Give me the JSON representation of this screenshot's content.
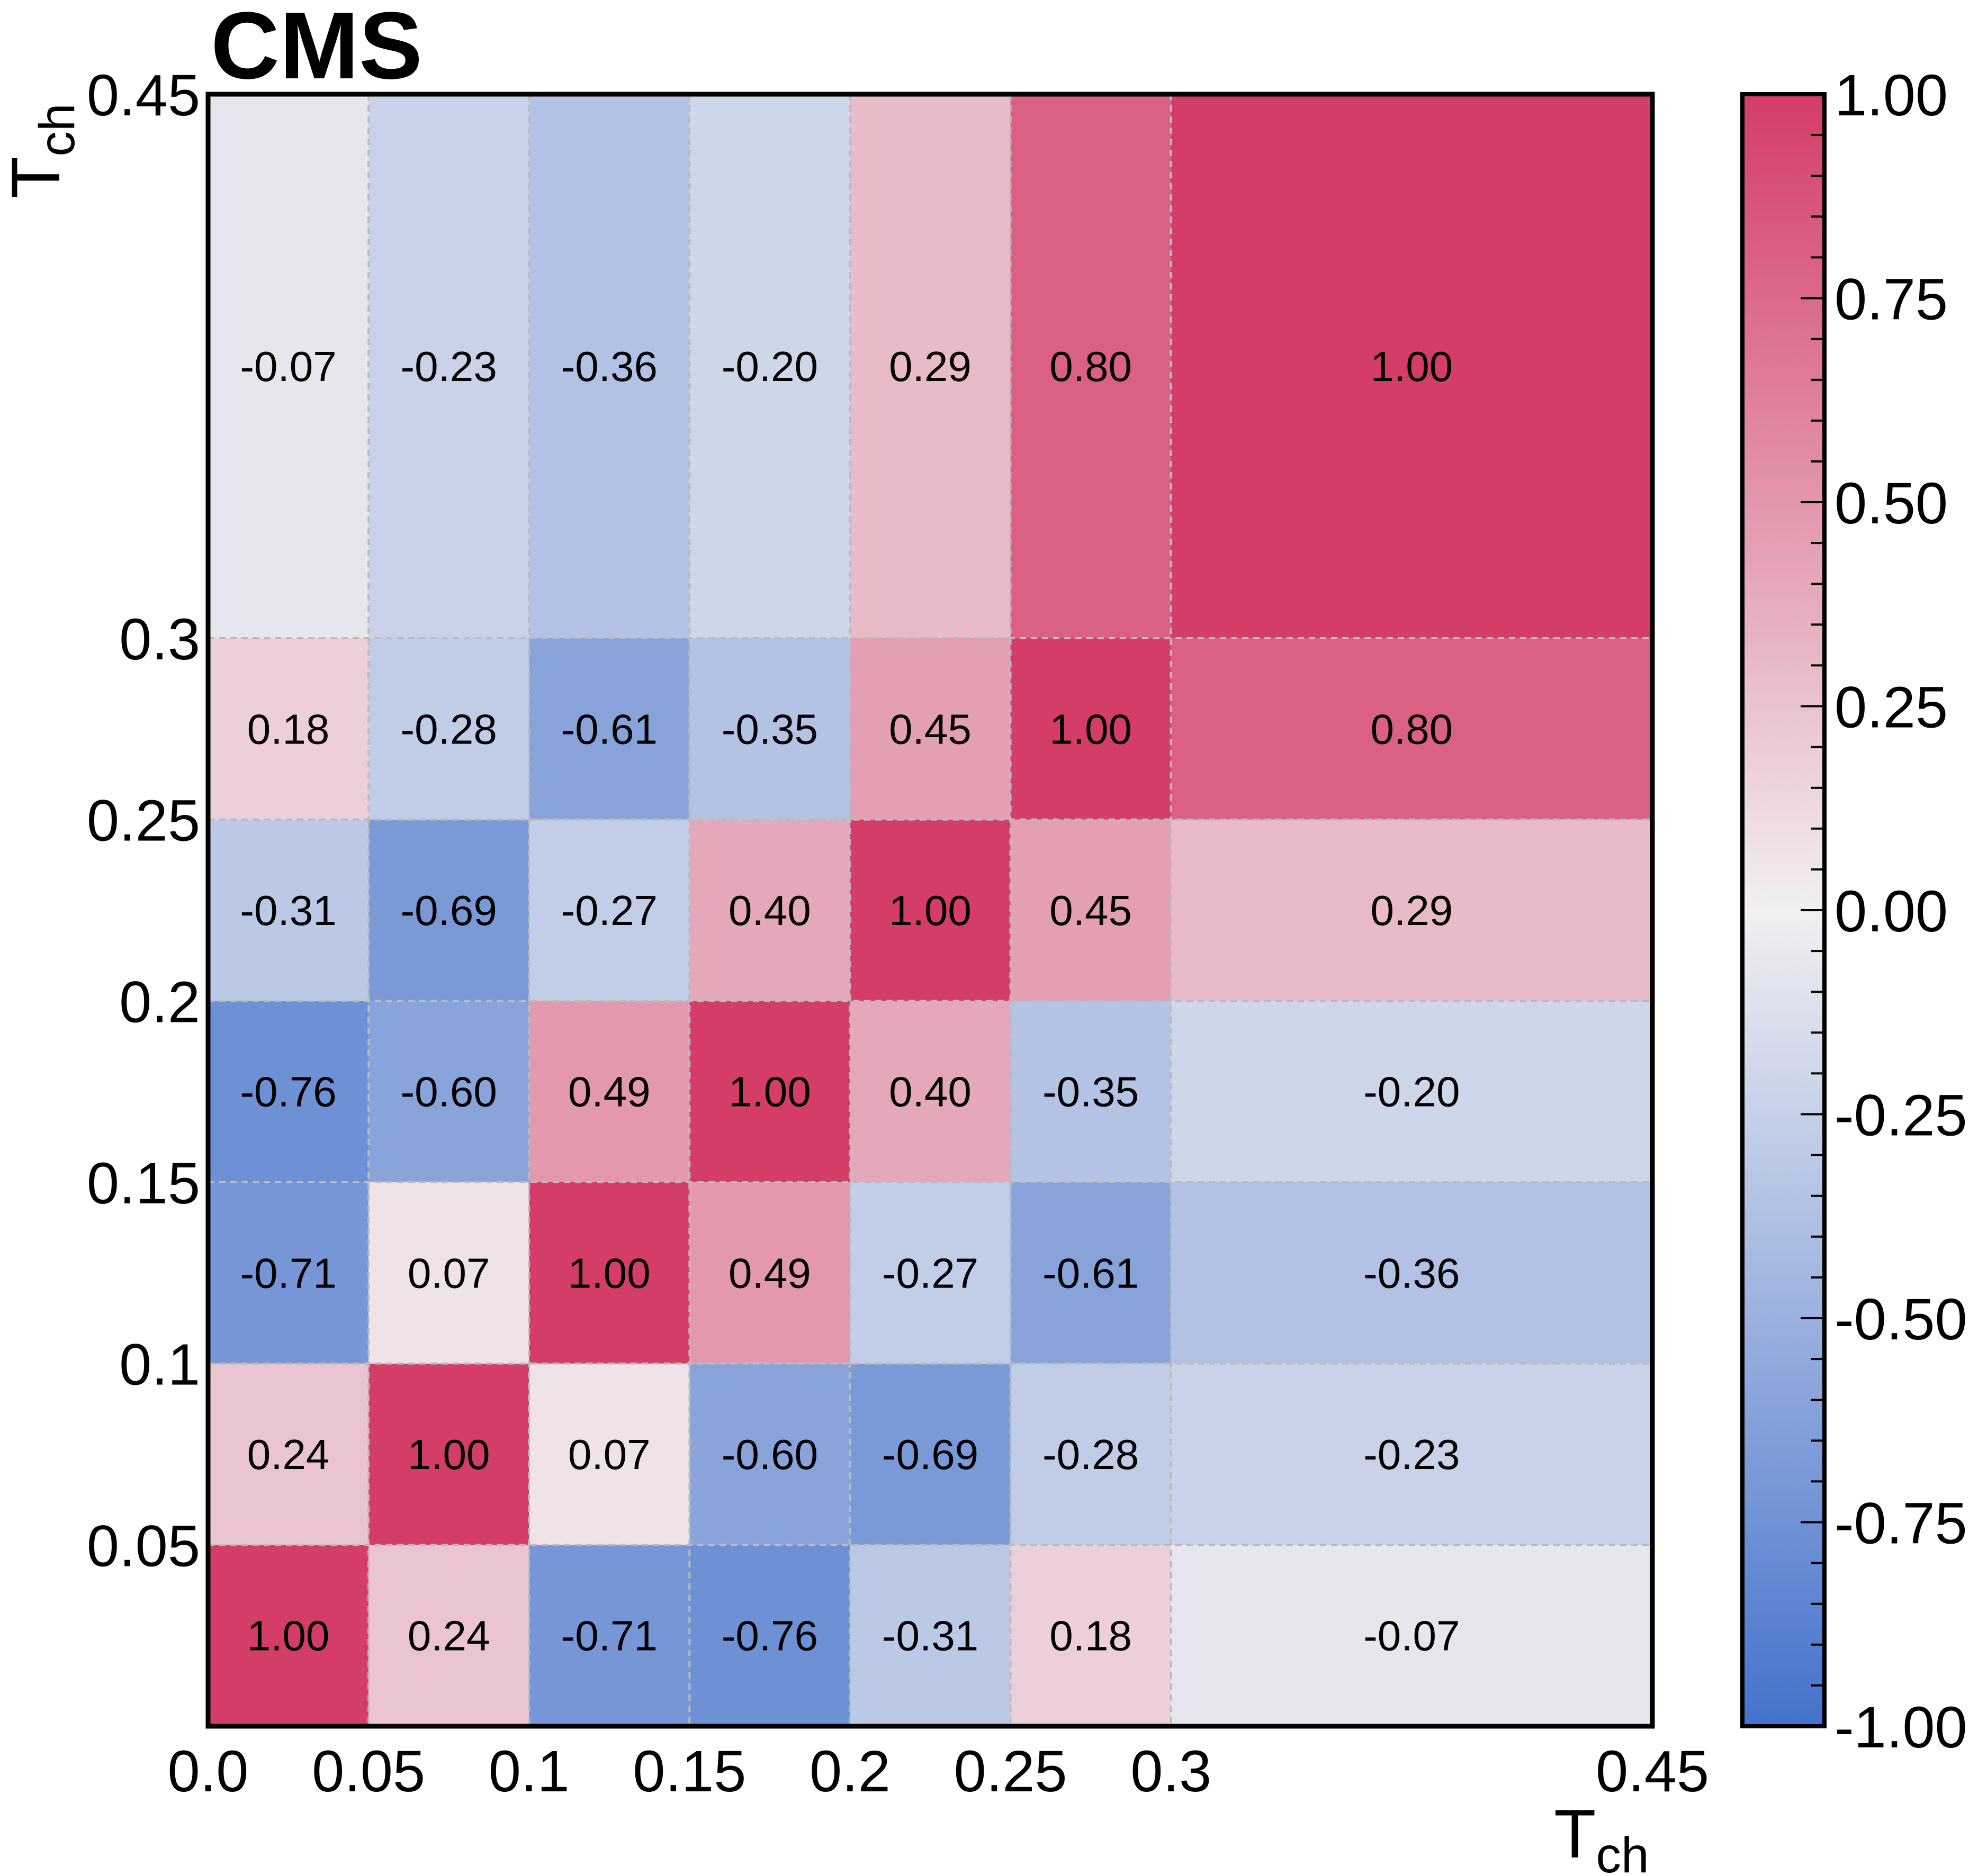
{
  "chart_data": {
    "type": "heatmap",
    "title": "CMS",
    "xlabel": "T",
    "xlabel_sub": "ch",
    "ylabel": "T",
    "ylabel_sub": "ch",
    "bin_edges": [
      0.0,
      0.05,
      0.1,
      0.15,
      0.2,
      0.25,
      0.3,
      0.45
    ],
    "x_tick_labels": [
      "0.0",
      "0.05",
      "0.1",
      "0.15",
      "0.2",
      "0.25",
      "0.3",
      "0.45"
    ],
    "y_tick_labels": [
      "",
      "0.05",
      "0.1",
      "0.15",
      "0.2",
      "0.25",
      "0.3",
      "0.45"
    ],
    "xlim": [
      0.0,
      0.45
    ],
    "ylim": [
      0.0,
      0.45
    ],
    "matrix_labels": [
      [
        "1.00",
        "0.24",
        "-0.71",
        "-0.76",
        "-0.31",
        "0.18",
        "-0.07"
      ],
      [
        "0.24",
        "1.00",
        "0.07",
        "-0.60",
        "-0.69",
        "-0.28",
        "-0.23"
      ],
      [
        "-0.71",
        "0.07",
        "1.00",
        "0.49",
        "-0.27",
        "-0.61",
        "-0.36"
      ],
      [
        "-0.76",
        "-0.60",
        "0.49",
        "1.00",
        "0.40",
        "-0.35",
        "-0.20"
      ],
      [
        "-0.31",
        "-0.69",
        "-0.27",
        "0.40",
        "1.00",
        "0.45",
        "0.29"
      ],
      [
        "0.18",
        "-0.28",
        "-0.61",
        "-0.35",
        "0.45",
        "1.00",
        "0.80"
      ],
      [
        "-0.07",
        "-0.23",
        "-0.36",
        "-0.20",
        "0.29",
        "0.80",
        "1.00"
      ]
    ],
    "colorbar": {
      "range": [
        -1.0,
        1.0
      ],
      "tick_labels": [
        "1.00",
        "0.75",
        "0.50",
        "0.25",
        "0.00",
        "-0.25",
        "-0.50",
        "-0.75",
        "-1.00"
      ],
      "colors": {
        "low": "#4472cc",
        "mid": "#f1eff1",
        "high": "#d43d68"
      }
    },
    "grid": true,
    "grid_color": "#bbbbbb"
  }
}
